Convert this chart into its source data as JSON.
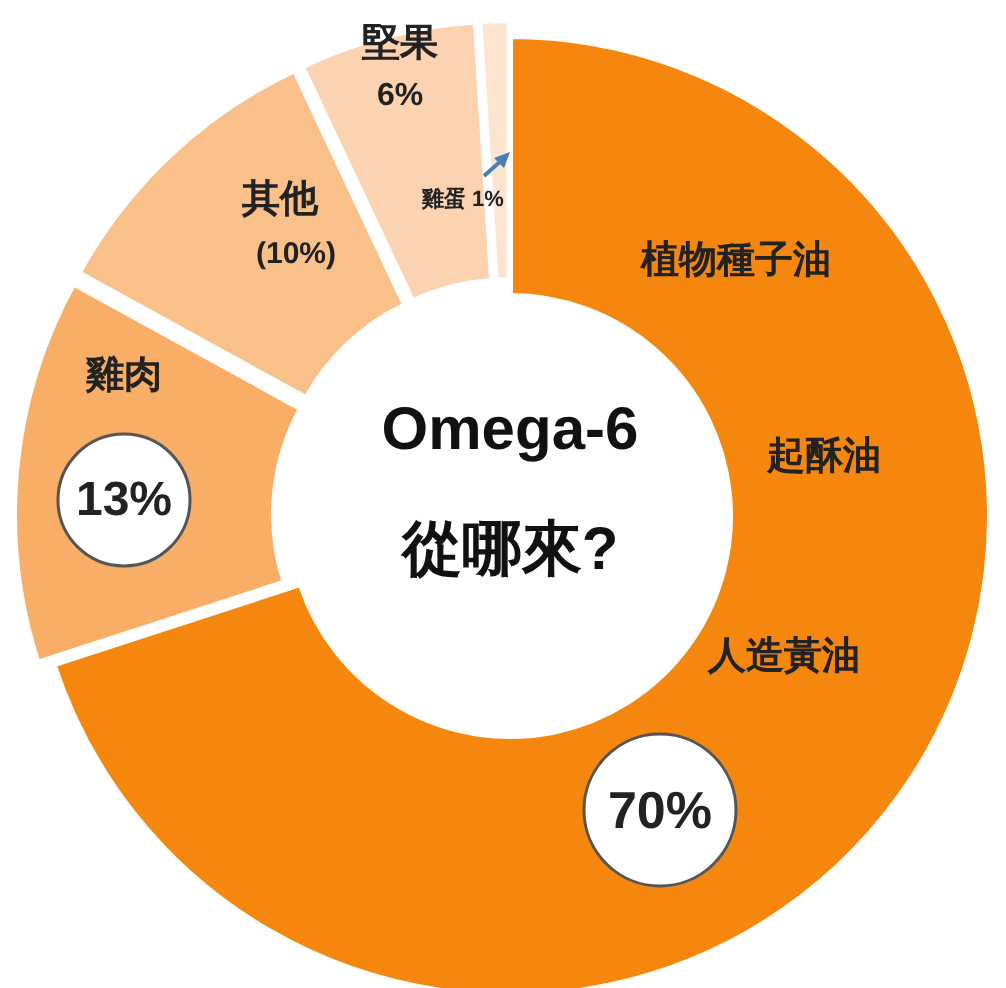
{
  "chart_data": {
    "type": "donut",
    "title": "Omega-6",
    "subtitle": "從哪來?",
    "categories": [
      "植物種子油起酥油人造黃油",
      "雞肉",
      "其他",
      "堅果",
      "雞蛋"
    ],
    "values": [
      70,
      13,
      10,
      6,
      1
    ],
    "value_labels": [
      "70%",
      "13%",
      "(10%)",
      "6%",
      "1%"
    ],
    "colors": [
      "#f5870f",
      "#f8ae66",
      "#f9c08a",
      "#fbd3b0",
      "#fde4cf"
    ]
  }
}
